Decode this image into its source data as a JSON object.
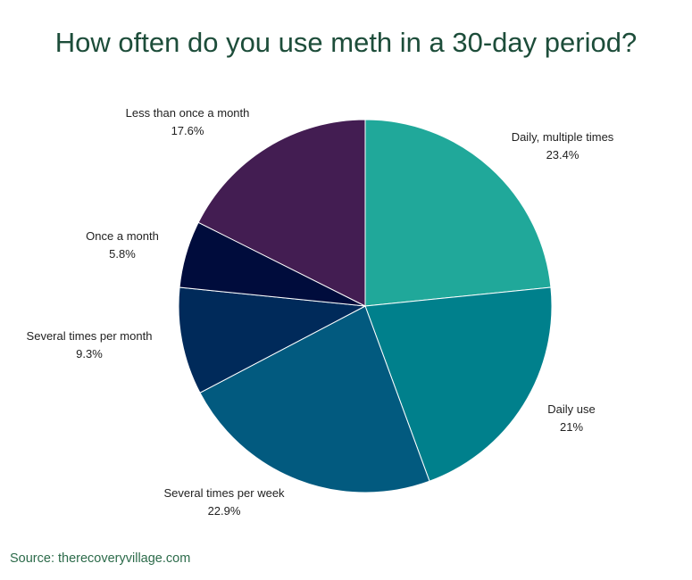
{
  "chart_data": {
    "type": "pie",
    "title": "How often do you use meth in a 30-day period?",
    "slices": [
      {
        "label": "Daily, multiple times",
        "value": 23.4,
        "value_label": "23.4%",
        "color": "#20a89a"
      },
      {
        "label": "Daily use",
        "value": 21,
        "value_label": "21%",
        "color": "#00808c"
      },
      {
        "label": "Several times per week",
        "value": 22.9,
        "value_label": "22.9%",
        "color": "#025a7f"
      },
      {
        "label": "Several times per month",
        "value": 9.3,
        "value_label": "9.3%",
        "color": "#002a5a"
      },
      {
        "label": "Once a month",
        "value": 5.8,
        "value_label": "5.8%",
        "color": "#000c3c"
      },
      {
        "label": "Less than once a month",
        "value": 17.6,
        "value_label": "17.6%",
        "color": "#431d52"
      }
    ],
    "legend": false
  },
  "source": "Source: therecoveryvillage.com"
}
